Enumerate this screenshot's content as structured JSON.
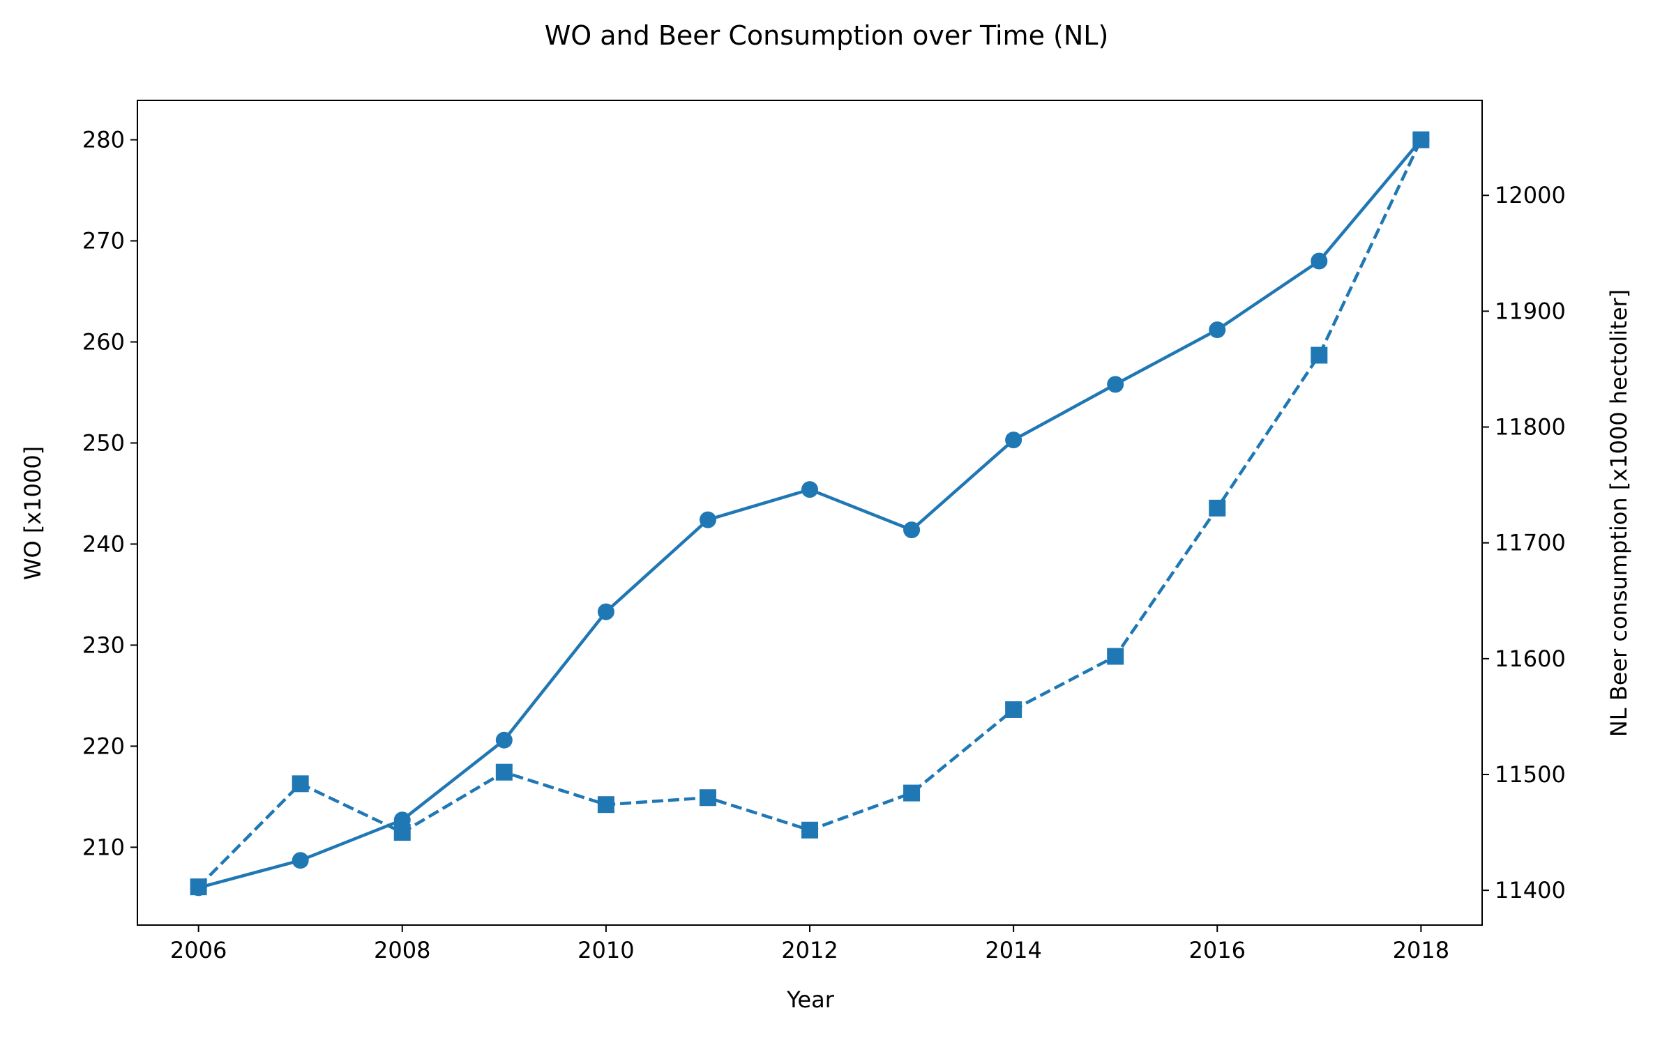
{
  "chart_data": {
    "type": "line",
    "title": "WO and Beer Consumption over Time (NL)",
    "xlabel": "Year",
    "ylabel_left": "WO [x1000]",
    "ylabel_right": "NL Beer consumption [x1000 hectoliter]",
    "x": [
      2006,
      2007,
      2008,
      2009,
      2010,
      2011,
      2012,
      2013,
      2014,
      2015,
      2016,
      2017,
      2018
    ],
    "x_ticks": [
      2006,
      2008,
      2010,
      2012,
      2014,
      2016,
      2018
    ],
    "xlim": [
      2005.4,
      2018.6
    ],
    "grid": false,
    "color": "#1f77b4",
    "series": [
      {
        "axis": "left",
        "marker": "circle",
        "line_style": "solid",
        "values": [
          206.0,
          208.7,
          212.7,
          220.6,
          233.3,
          242.4,
          245.4,
          241.4,
          250.3,
          255.8,
          261.2,
          268.0,
          280.0
        ]
      },
      {
        "axis": "right",
        "marker": "square",
        "line_style": "dashed",
        "values": [
          11403,
          11492,
          11450,
          11502,
          11474,
          11480,
          11452,
          11484,
          11556,
          11602,
          11730,
          11862,
          12048
        ]
      }
    ],
    "y_left": {
      "ticks": [
        210,
        220,
        230,
        240,
        250,
        260,
        270,
        280
      ],
      "lim": [
        202.3,
        283.9
      ]
    },
    "y_right": {
      "ticks": [
        11400,
        11500,
        11600,
        11700,
        11800,
        11900,
        12000
      ],
      "lim": [
        11370,
        12082
      ]
    }
  }
}
